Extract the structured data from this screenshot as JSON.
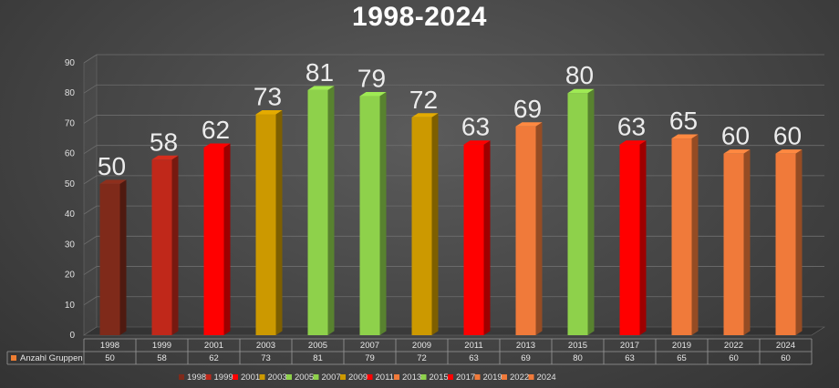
{
  "chart_data": {
    "type": "bar",
    "title": "1998-2024",
    "categories": [
      "1998",
      "1999",
      "2001",
      "2003",
      "2005",
      "2007",
      "2009",
      "2011",
      "2013",
      "2015",
      "2017",
      "2019",
      "2022",
      "2024"
    ],
    "series": [
      {
        "name": "Anzahl Gruppen",
        "values": [
          50,
          58,
          62,
          73,
          81,
          79,
          72,
          63,
          69,
          80,
          63,
          65,
          60,
          60
        ]
      }
    ],
    "ylim": [
      0,
      90
    ],
    "yticks": [
      0,
      10,
      20,
      30,
      40,
      50,
      60,
      70,
      80,
      90
    ],
    "grid": true,
    "data_table": true,
    "legend_position": "bottom",
    "bar_colors": [
      "#7f2a1a",
      "#c0281a",
      "#ff0000",
      "#cc9900",
      "#8ed14b",
      "#8ed14b",
      "#cc9900",
      "#ff0000",
      "#f07a3a",
      "#8ed14b",
      "#ff0000",
      "#f07a3a",
      "#f07a3a",
      "#f07a3a"
    ]
  }
}
